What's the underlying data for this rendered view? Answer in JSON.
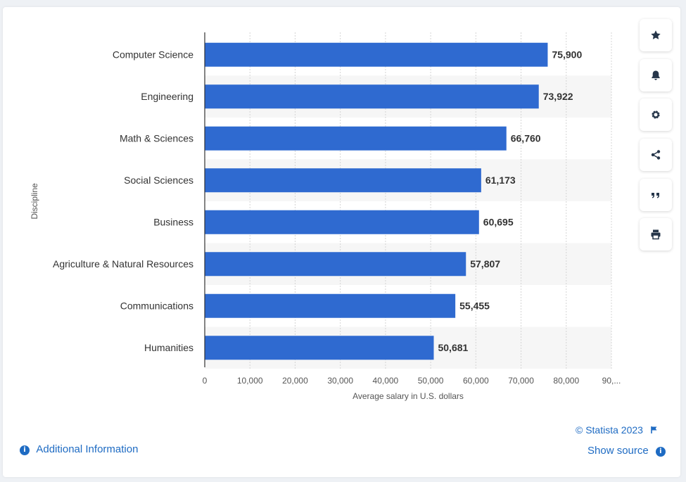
{
  "chart_data": {
    "type": "bar",
    "orientation": "horizontal",
    "categories": [
      "Computer Science",
      "Engineering",
      "Math & Sciences",
      "Social Sciences",
      "Business",
      "Agriculture & Natural Resources",
      "Communications",
      "Humanities"
    ],
    "values": [
      75900,
      73922,
      66760,
      61173,
      60695,
      57807,
      55455,
      50681
    ],
    "value_labels": [
      "75,900",
      "73,922",
      "66,760",
      "61,173",
      "60,695",
      "57,807",
      "55,455",
      "50,681"
    ],
    "xlabel": "Average salary in U.S. dollars",
    "ylabel": "Discipline",
    "xlim": [
      0,
      90000
    ],
    "x_ticks": [
      "0",
      "10,000",
      "20,000",
      "30,000",
      "40,000",
      "50,000",
      "60,000",
      "70,000",
      "80,000",
      "90,..."
    ],
    "grid": true,
    "bar_color": "#2f6ad0"
  },
  "sidebar": {
    "buttons": [
      {
        "name": "favorite-button",
        "icon": "star-icon"
      },
      {
        "name": "notification-button",
        "icon": "bell-icon"
      },
      {
        "name": "settings-button",
        "icon": "gear-icon"
      },
      {
        "name": "share-button",
        "icon": "share-icon"
      },
      {
        "name": "cite-button",
        "icon": "quote-icon"
      },
      {
        "name": "print-button",
        "icon": "printer-icon"
      }
    ]
  },
  "footer": {
    "copyright": "© Statista 2023",
    "show_source": "Show source",
    "additional_info": "Additional Information"
  },
  "colors": {
    "accent": "#1e6bc3",
    "bar": "#2f6ad0",
    "stripe": "#f6f6f6"
  }
}
